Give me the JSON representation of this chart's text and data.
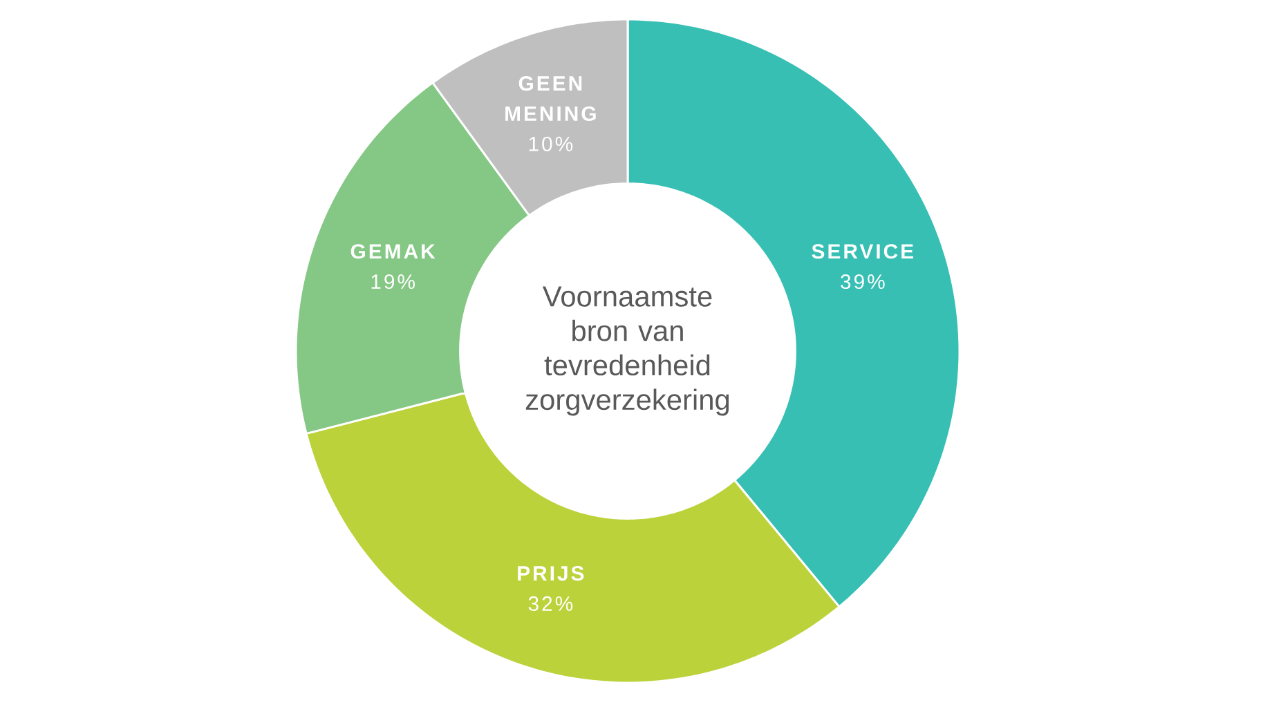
{
  "chart_data": {
    "type": "donut",
    "title": "Voornaamste bron van tevredenheid zorgverzekering",
    "categories": [
      "SERVICE",
      "PRIJS",
      "GEMAK",
      "GEEN MENING"
    ],
    "values": [
      39,
      32,
      19,
      10
    ],
    "value_labels": [
      "39%",
      "32%",
      "19%",
      "10%"
    ],
    "colors": [
      "#37bfb4",
      "#bcd23a",
      "#85c785",
      "#bfbfbf"
    ]
  }
}
